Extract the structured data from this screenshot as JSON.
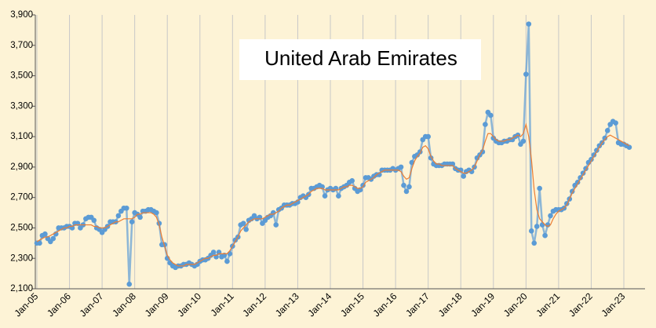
{
  "chart_data": {
    "type": "line",
    "title": "United Arab Emirates",
    "categories": [
      "Jan-05",
      null,
      null,
      null,
      null,
      null,
      null,
      null,
      null,
      null,
      null,
      null,
      "Jan-06",
      null,
      null,
      null,
      null,
      null,
      null,
      null,
      null,
      null,
      null,
      null,
      "Jan-07",
      null,
      null,
      null,
      null,
      null,
      null,
      null,
      null,
      null,
      null,
      null,
      "Jan-08",
      null,
      null,
      null,
      null,
      null,
      null,
      null,
      null,
      null,
      null,
      null,
      "Jan-09",
      null,
      null,
      null,
      null,
      null,
      null,
      null,
      null,
      null,
      null,
      null,
      "Jan-10",
      null,
      null,
      null,
      null,
      null,
      null,
      null,
      null,
      null,
      null,
      null,
      "Jan-11",
      null,
      null,
      null,
      null,
      null,
      null,
      null,
      null,
      null,
      null,
      null,
      "Jan-12",
      null,
      null,
      null,
      null,
      null,
      null,
      null,
      null,
      null,
      null,
      null,
      "Jan-13",
      null,
      null,
      null,
      null,
      null,
      null,
      null,
      null,
      null,
      null,
      null,
      "Jan-14",
      null,
      null,
      null,
      null,
      null,
      null,
      null,
      null,
      null,
      null,
      null,
      "Jan-15",
      null,
      null,
      null,
      null,
      null,
      null,
      null,
      null,
      null,
      null,
      null,
      "Jan-16",
      null,
      null,
      null,
      null,
      null,
      null,
      null,
      null,
      null,
      null,
      null,
      "Jan-17",
      null,
      null,
      null,
      null,
      null,
      null,
      null,
      null,
      null,
      null,
      null,
      "Jan-18",
      null,
      null,
      null,
      null,
      null,
      null,
      null,
      null,
      null,
      null,
      null,
      "Jan-19",
      null,
      null,
      null,
      null,
      null,
      null,
      null,
      null,
      null,
      null,
      null,
      "Jan-20",
      null,
      null,
      null,
      null,
      null,
      null,
      null,
      null,
      null,
      null,
      null,
      "Jan-21",
      null,
      null,
      null,
      null,
      null,
      null,
      null,
      null,
      null,
      null,
      null,
      "Jan-22",
      null,
      null,
      null,
      null,
      null,
      null,
      null,
      null,
      null,
      null,
      null,
      "Jan-23",
      null,
      null
    ],
    "series": [
      {
        "color": "#5b9bd5",
        "markers": true,
        "values": [
          2400,
          2400,
          2450,
          2460,
          2430,
          2410,
          2430,
          2460,
          2500,
          2500,
          2500,
          2510,
          2510,
          2500,
          2530,
          2530,
          2500,
          2520,
          2560,
          2570,
          2570,
          2550,
          2500,
          2490,
          2470,
          2490,
          2510,
          2540,
          2540,
          2540,
          2580,
          2610,
          2630,
          2630,
          2130,
          2540,
          2600,
          2590,
          2570,
          2610,
          2610,
          2620,
          2620,
          2610,
          2600,
          2530,
          2390,
          2390,
          2300,
          2270,
          2250,
          2240,
          2250,
          2250,
          2260,
          2260,
          2270,
          2260,
          2250,
          2260,
          2280,
          2290,
          2290,
          2300,
          2320,
          2340,
          2310,
          2340,
          2310,
          2320,
          2280,
          2330,
          2380,
          2420,
          2440,
          2520,
          2530,
          2490,
          2550,
          2560,
          2580,
          2560,
          2570,
          2530,
          2550,
          2570,
          2580,
          2600,
          2520,
          2620,
          2630,
          2650,
          2650,
          2650,
          2660,
          2660,
          2670,
          2700,
          2710,
          2700,
          2720,
          2760,
          2760,
          2770,
          2780,
          2770,
          2710,
          2750,
          2760,
          2750,
          2760,
          2710,
          2760,
          2770,
          2780,
          2800,
          2810,
          2760,
          2740,
          2750,
          2780,
          2830,
          2830,
          2820,
          2840,
          2850,
          2850,
          2880,
          2880,
          2880,
          2880,
          2890,
          2880,
          2890,
          2900,
          2780,
          2740,
          2770,
          2930,
          2970,
          2980,
          3000,
          3080,
          3100,
          3100,
          2960,
          2920,
          2910,
          2910,
          2910,
          2920,
          2920,
          2920,
          2920,
          2890,
          2880,
          2880,
          2840,
          2870,
          2880,
          2870,
          2900,
          2960,
          2980,
          3000,
          3180,
          3260,
          3240,
          3090,
          3070,
          3060,
          3060,
          3070,
          3070,
          3080,
          3080,
          3100,
          3110,
          3050,
          3070,
          3510,
          3840,
          2480,
          2400,
          2510,
          2760,
          2520,
          2450,
          2520,
          2580,
          2610,
          2620,
          2620,
          2620,
          2630,
          2660,
          2690,
          2740,
          2780,
          2800,
          2830,
          2860,
          2890,
          2930,
          2950,
          2980,
          3010,
          3040,
          3060,
          3090,
          3140,
          3180,
          3200,
          3190,
          3060,
          3050,
          3050,
          3040,
          3030
        ]
      },
      {
        "color": "#ed7d31",
        "markers": false,
        "values": [
          2410,
          2420,
          2430,
          2440,
          2440,
          2450,
          2460,
          2470,
          2480,
          2490,
          2500,
          2500,
          2510,
          2510,
          2520,
          2520,
          2520,
          2520,
          2520,
          2520,
          2520,
          2510,
          2510,
          2500,
          2500,
          2500,
          2510,
          2520,
          2530,
          2540,
          2540,
          2550,
          2560,
          2560,
          2560,
          2560,
          2570,
          2590,
          2590,
          2600,
          2600,
          2600,
          2600,
          2590,
          2570,
          2520,
          2440,
          2380,
          2320,
          2290,
          2270,
          2260,
          2250,
          2250,
          2250,
          2260,
          2260,
          2260,
          2260,
          2270,
          2280,
          2290,
          2300,
          2300,
          2310,
          2320,
          2320,
          2330,
          2330,
          2330,
          2330,
          2350,
          2380,
          2410,
          2440,
          2480,
          2500,
          2520,
          2540,
          2550,
          2560,
          2560,
          2560,
          2560,
          2570,
          2580,
          2590,
          2590,
          2600,
          2610,
          2630,
          2640,
          2650,
          2650,
          2660,
          2670,
          2680,
          2690,
          2700,
          2710,
          2720,
          2740,
          2750,
          2760,
          2760,
          2760,
          2750,
          2750,
          2750,
          2750,
          2750,
          2750,
          2760,
          2770,
          2770,
          2780,
          2780,
          2770,
          2760,
          2760,
          2770,
          2800,
          2810,
          2820,
          2830,
          2850,
          2860,
          2870,
          2880,
          2880,
          2880,
          2880,
          2880,
          2880,
          2870,
          2840,
          2820,
          2830,
          2890,
          2940,
          2970,
          2990,
          3030,
          3040,
          3020,
          2970,
          2940,
          2920,
          2920,
          2910,
          2910,
          2910,
          2910,
          2910,
          2890,
          2880,
          2870,
          2860,
          2860,
          2870,
          2880,
          2900,
          2940,
          2980,
          3010,
          3070,
          3120,
          3120,
          3100,
          3080,
          3070,
          3070,
          3070,
          3080,
          3080,
          3090,
          3100,
          3110,
          3100,
          3120,
          3180,
          3100,
          2950,
          2750,
          2620,
          2560,
          2540,
          2520,
          2510,
          2520,
          2560,
          2590,
          2610,
          2620,
          2630,
          2650,
          2690,
          2730,
          2760,
          2790,
          2820,
          2850,
          2880,
          2910,
          2940,
          2970,
          3000,
          3030,
          3060,
          3080,
          3100,
          3110,
          3100,
          3090,
          3080,
          3070,
          3060,
          3050,
          3040
        ]
      }
    ],
    "ylim": [
      2100,
      3900
    ],
    "yticks": [
      {
        "value": 2100,
        "label": "2,100"
      },
      {
        "value": 2300,
        "label": "2,300"
      },
      {
        "value": 2500,
        "label": "2,500"
      },
      {
        "value": 2700,
        "label": "2,700"
      },
      {
        "value": 2900,
        "label": "2,900"
      },
      {
        "value": 3100,
        "label": "3,100"
      },
      {
        "value": 3300,
        "label": "3,300"
      },
      {
        "value": 3500,
        "label": "3,500"
      },
      {
        "value": 3700,
        "label": "3,700"
      },
      {
        "value": 3900,
        "label": "3,900"
      }
    ],
    "grid": "x"
  }
}
